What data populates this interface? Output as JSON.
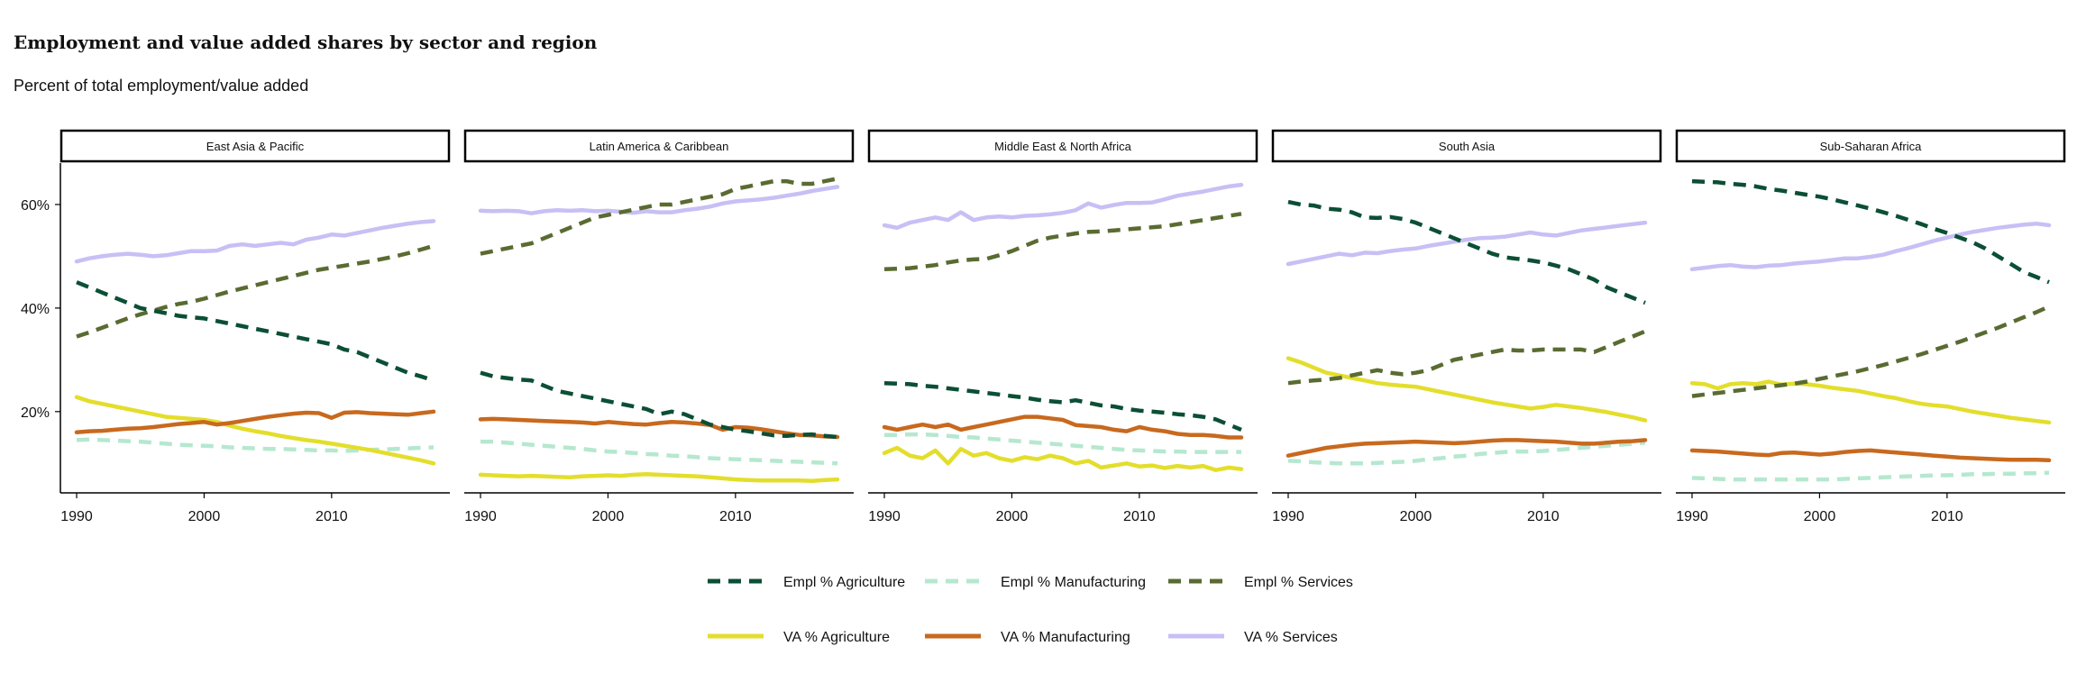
{
  "chart_data": {
    "type": "line",
    "title": "Employment and value added shares by sector and region",
    "subtitle": "Percent of total employment/value added",
    "xlabel": "",
    "ylabel": "",
    "xlim": [
      1990,
      2018
    ],
    "ylim": [
      5,
      68
    ],
    "x_ticks": [
      1990,
      2000,
      2010
    ],
    "y_ticks": [
      20,
      40,
      60
    ],
    "y_tick_labels": [
      "20%",
      "40%",
      "60%"
    ],
    "grid": false,
    "legend_position": "bottom",
    "x": [
      1990,
      1991,
      1992,
      1993,
      1994,
      1995,
      1996,
      1997,
      1998,
      1999,
      2000,
      2001,
      2002,
      2003,
      2004,
      2005,
      2006,
      2007,
      2008,
      2009,
      2010,
      2011,
      2012,
      2013,
      2014,
      2015,
      2016,
      2017,
      2018
    ],
    "legend": [
      {
        "key": "empl_agr",
        "name": "Empl % Agriculture",
        "color": "#0b4f35",
        "dashed": true
      },
      {
        "key": "empl_man",
        "name": "Empl % Manufacturing",
        "color": "#b5e8cf",
        "dashed": true
      },
      {
        "key": "empl_ser",
        "name": "Empl % Services",
        "color": "#5a6b32",
        "dashed": true
      },
      {
        "key": "va_agr",
        "name": "VA % Agriculture",
        "color": "#e3de2c",
        "dashed": false
      },
      {
        "key": "va_man",
        "name": "VA % Manufacturing",
        "color": "#c8691e",
        "dashed": false
      },
      {
        "key": "va_ser",
        "name": "VA % Services",
        "color": "#c7c0f5",
        "dashed": false
      }
    ],
    "panels": [
      {
        "region": "East Asia & Pacific",
        "series": {
          "empl_agr": [
            45.0,
            44.0,
            43.0,
            42.0,
            41.0,
            40.0,
            39.5,
            39.0,
            38.5,
            38.2,
            38.0,
            37.5,
            37.0,
            36.5,
            36.0,
            35.5,
            35.0,
            34.5,
            34.0,
            33.5,
            33.0,
            32.0,
            31.5,
            30.5,
            29.5,
            28.5,
            27.5,
            26.8,
            26.0
          ],
          "empl_man": [
            14.5,
            14.6,
            14.5,
            14.4,
            14.3,
            14.2,
            14.0,
            13.8,
            13.6,
            13.5,
            13.4,
            13.3,
            13.1,
            13.0,
            12.9,
            12.8,
            12.8,
            12.7,
            12.6,
            12.5,
            12.5,
            12.4,
            12.5,
            12.6,
            12.7,
            12.8,
            12.9,
            13.0,
            13.1
          ],
          "empl_ser": [
            34.5,
            35.3,
            36.2,
            37.1,
            38.0,
            38.8,
            39.5,
            40.2,
            40.8,
            41.2,
            41.8,
            42.5,
            43.2,
            43.8,
            44.4,
            45.0,
            45.6,
            46.2,
            46.8,
            47.4,
            47.8,
            48.2,
            48.6,
            49.0,
            49.5,
            50.0,
            50.6,
            51.3,
            52.0
          ],
          "va_agr": [
            22.8,
            22.0,
            21.5,
            21.0,
            20.5,
            20.0,
            19.5,
            19.0,
            18.8,
            18.6,
            18.4,
            18.0,
            17.3,
            16.7,
            16.2,
            15.8,
            15.3,
            14.9,
            14.5,
            14.2,
            13.8,
            13.4,
            13.0,
            12.6,
            12.1,
            11.6,
            11.1,
            10.6,
            10.0
          ],
          "va_man": [
            16.0,
            16.2,
            16.3,
            16.5,
            16.7,
            16.8,
            17.0,
            17.3,
            17.6,
            17.8,
            18.0,
            17.5,
            17.8,
            18.2,
            18.6,
            19.0,
            19.3,
            19.6,
            19.8,
            19.7,
            18.8,
            19.8,
            19.9,
            19.7,
            19.6,
            19.5,
            19.4,
            19.7,
            20.0
          ],
          "va_ser": [
            49.0,
            49.6,
            50.0,
            50.3,
            50.5,
            50.3,
            50.0,
            50.2,
            50.6,
            51.0,
            51.0,
            51.1,
            52.0,
            52.3,
            52.0,
            52.3,
            52.6,
            52.3,
            53.2,
            53.6,
            54.2,
            54.0,
            54.5,
            55.0,
            55.5,
            55.9,
            56.3,
            56.6,
            56.8
          ]
        }
      },
      {
        "region": "Latin America & Caribbean",
        "series": {
          "empl_agr": [
            27.5,
            26.8,
            26.5,
            26.2,
            26.0,
            25.0,
            24.0,
            23.5,
            23.0,
            22.5,
            22.0,
            21.5,
            21.0,
            20.5,
            19.5,
            20.0,
            19.5,
            18.5,
            17.5,
            17.0,
            16.5,
            16.2,
            15.8,
            15.4,
            15.3,
            15.5,
            15.6,
            15.3,
            15.1
          ],
          "empl_man": [
            14.2,
            14.2,
            14.0,
            13.8,
            13.6,
            13.4,
            13.2,
            13.0,
            12.8,
            12.5,
            12.3,
            12.2,
            12.0,
            11.8,
            11.7,
            11.5,
            11.4,
            11.2,
            11.0,
            10.9,
            10.8,
            10.7,
            10.6,
            10.5,
            10.4,
            10.3,
            10.2,
            10.1,
            10.0
          ],
          "empl_ser": [
            50.5,
            51.0,
            51.5,
            52.0,
            52.5,
            53.5,
            54.5,
            55.5,
            56.5,
            57.5,
            58.0,
            58.5,
            59.0,
            59.5,
            60.0,
            60.0,
            60.5,
            61.0,
            61.5,
            62.0,
            63.0,
            63.5,
            64.0,
            64.5,
            64.5,
            64.0,
            64.0,
            64.5,
            65.0
          ],
          "va_agr": [
            7.8,
            7.7,
            7.6,
            7.5,
            7.6,
            7.5,
            7.4,
            7.3,
            7.5,
            7.6,
            7.7,
            7.6,
            7.8,
            7.9,
            7.8,
            7.7,
            7.6,
            7.5,
            7.3,
            7.1,
            6.9,
            6.8,
            6.7,
            6.7,
            6.7,
            6.7,
            6.6,
            6.8,
            6.9
          ],
          "va_man": [
            18.5,
            18.6,
            18.5,
            18.4,
            18.3,
            18.2,
            18.1,
            18.0,
            17.9,
            17.7,
            18.0,
            17.8,
            17.6,
            17.5,
            17.8,
            18.0,
            17.9,
            17.7,
            17.4,
            16.5,
            17.0,
            16.9,
            16.6,
            16.2,
            15.8,
            15.5,
            15.4,
            15.2,
            15.1
          ],
          "va_ser": [
            58.8,
            58.7,
            58.8,
            58.7,
            58.3,
            58.7,
            58.9,
            58.8,
            58.9,
            58.7,
            58.8,
            58.6,
            58.4,
            58.7,
            58.5,
            58.5,
            58.9,
            59.2,
            59.6,
            60.2,
            60.6,
            60.8,
            61.0,
            61.3,
            61.7,
            62.1,
            62.6,
            63.0,
            63.4
          ]
        }
      },
      {
        "region": "Middle East & North Africa",
        "series": {
          "empl_agr": [
            25.5,
            25.4,
            25.3,
            25.0,
            24.8,
            24.5,
            24.2,
            23.9,
            23.6,
            23.3,
            23.0,
            22.7,
            22.3,
            22.0,
            21.8,
            22.2,
            21.7,
            21.2,
            21.0,
            20.5,
            20.2,
            20.0,
            19.8,
            19.5,
            19.3,
            19.0,
            18.5,
            17.5,
            16.5
          ],
          "empl_man": [
            15.5,
            15.5,
            15.6,
            15.6,
            15.5,
            15.3,
            15.1,
            15.0,
            14.8,
            14.6,
            14.4,
            14.2,
            14.0,
            13.8,
            13.6,
            13.4,
            13.2,
            13.0,
            12.8,
            12.6,
            12.5,
            12.4,
            12.3,
            12.3,
            12.2,
            12.2,
            12.2,
            12.2,
            12.2
          ],
          "empl_ser": [
            47.5,
            47.6,
            47.7,
            48.0,
            48.3,
            48.8,
            49.2,
            49.4,
            49.5,
            50.2,
            51.0,
            52.0,
            53.0,
            53.6,
            54.0,
            54.4,
            54.7,
            54.8,
            55.0,
            55.2,
            55.4,
            55.6,
            55.8,
            56.2,
            56.6,
            57.0,
            57.4,
            57.8,
            58.2
          ],
          "va_agr": [
            12.0,
            13.0,
            11.5,
            11.0,
            12.5,
            10.0,
            12.8,
            11.5,
            12.0,
            11.0,
            10.5,
            11.2,
            10.8,
            11.5,
            11.0,
            10.0,
            10.5,
            9.2,
            9.6,
            10.0,
            9.4,
            9.6,
            9.1,
            9.5,
            9.2,
            9.5,
            8.7,
            9.2,
            8.9
          ],
          "va_man": [
            17.0,
            16.5,
            17.0,
            17.5,
            17.0,
            17.5,
            16.5,
            17.0,
            17.5,
            18.0,
            18.5,
            19.0,
            19.0,
            18.7,
            18.4,
            17.4,
            17.2,
            17.0,
            16.5,
            16.2,
            17.0,
            16.5,
            16.2,
            15.7,
            15.5,
            15.5,
            15.3,
            15.0,
            15.0
          ],
          "va_ser": [
            56.0,
            55.5,
            56.5,
            57.0,
            57.5,
            57.0,
            58.5,
            57.0,
            57.5,
            57.7,
            57.5,
            57.8,
            57.9,
            58.1,
            58.4,
            58.9,
            60.2,
            59.4,
            59.9,
            60.3,
            60.3,
            60.4,
            61.0,
            61.7,
            62.1,
            62.5,
            63.0,
            63.5,
            63.8
          ]
        }
      },
      {
        "region": "South Asia",
        "series": {
          "empl_agr": [
            60.5,
            60.0,
            59.8,
            59.2,
            59.0,
            58.5,
            57.5,
            57.4,
            57.6,
            57.2,
            56.5,
            55.5,
            54.5,
            53.5,
            52.5,
            51.5,
            50.5,
            49.8,
            49.5,
            49.2,
            48.8,
            48.2,
            47.5,
            46.5,
            45.5,
            44.0,
            43.0,
            42.0,
            41.0
          ],
          "empl_man": [
            10.5,
            10.4,
            10.2,
            10.1,
            10.0,
            10.0,
            10.0,
            10.1,
            10.2,
            10.3,
            10.5,
            10.8,
            11.0,
            11.3,
            11.5,
            11.8,
            12.0,
            12.2,
            12.3,
            12.3,
            12.4,
            12.6,
            12.8,
            13.0,
            13.2,
            13.4,
            13.6,
            13.8,
            14.0
          ],
          "empl_ser": [
            25.5,
            25.8,
            26.0,
            26.2,
            26.5,
            27.0,
            27.5,
            28.0,
            27.5,
            27.2,
            27.5,
            28.0,
            29.0,
            30.0,
            30.5,
            31.0,
            31.5,
            32.0,
            31.8,
            31.8,
            32.0,
            32.0,
            32.0,
            32.0,
            31.5,
            32.5,
            33.5,
            34.5,
            35.5
          ],
          "va_agr": [
            30.3,
            29.5,
            28.5,
            27.5,
            27.0,
            26.5,
            26.0,
            25.5,
            25.2,
            25.0,
            24.8,
            24.3,
            23.8,
            23.3,
            22.8,
            22.3,
            21.8,
            21.4,
            21.0,
            20.6,
            20.9,
            21.3,
            21.0,
            20.7,
            20.3,
            19.9,
            19.4,
            18.9,
            18.3
          ],
          "va_man": [
            11.5,
            12.0,
            12.5,
            13.0,
            13.3,
            13.6,
            13.8,
            13.9,
            14.0,
            14.1,
            14.2,
            14.1,
            14.0,
            13.9,
            14.0,
            14.2,
            14.4,
            14.5,
            14.5,
            14.4,
            14.3,
            14.2,
            14.0,
            13.8,
            13.8,
            14.0,
            14.2,
            14.3,
            14.5
          ],
          "va_ser": [
            48.5,
            49.0,
            49.5,
            50.0,
            50.5,
            50.2,
            50.7,
            50.6,
            51.0,
            51.3,
            51.5,
            52.0,
            52.4,
            52.8,
            53.2,
            53.5,
            53.6,
            53.8,
            54.2,
            54.6,
            54.2,
            54.0,
            54.5,
            55.0,
            55.3,
            55.6,
            55.9,
            56.2,
            56.5
          ]
        }
      },
      {
        "region": "Sub-Saharan Africa",
        "series": {
          "empl_agr": [
            64.5,
            64.4,
            64.3,
            64.0,
            63.8,
            63.5,
            63.0,
            62.7,
            62.3,
            61.9,
            61.5,
            61.0,
            60.4,
            59.8,
            59.2,
            58.5,
            57.8,
            57.0,
            56.2,
            55.3,
            54.5,
            53.6,
            52.7,
            51.5,
            50.0,
            48.5,
            47.0,
            46.0,
            45.0
          ],
          "empl_man": [
            7.2,
            7.1,
            7.0,
            6.9,
            6.9,
            6.9,
            6.9,
            6.9,
            6.9,
            6.9,
            6.9,
            6.9,
            7.0,
            7.1,
            7.2,
            7.3,
            7.4,
            7.5,
            7.6,
            7.7,
            7.7,
            7.8,
            7.9,
            7.9,
            8.0,
            8.0,
            8.1,
            8.1,
            8.2
          ],
          "empl_ser": [
            23.0,
            23.3,
            23.6,
            23.9,
            24.2,
            24.5,
            24.8,
            25.1,
            25.4,
            25.8,
            26.3,
            26.8,
            27.3,
            27.8,
            28.4,
            29.0,
            29.7,
            30.4,
            31.1,
            31.9,
            32.7,
            33.5,
            34.4,
            35.3,
            36.2,
            37.2,
            38.2,
            39.2,
            40.3
          ],
          "va_agr": [
            25.5,
            25.3,
            24.5,
            25.3,
            25.5,
            25.3,
            25.8,
            25.2,
            25.4,
            25.3,
            25.0,
            24.6,
            24.3,
            24.0,
            23.5,
            23.0,
            22.6,
            22.0,
            21.5,
            21.2,
            21.0,
            20.5,
            20.0,
            19.6,
            19.2,
            18.8,
            18.5,
            18.2,
            17.9
          ],
          "va_man": [
            12.5,
            12.4,
            12.3,
            12.1,
            11.9,
            11.7,
            11.6,
            12.0,
            12.1,
            11.9,
            11.7,
            11.9,
            12.2,
            12.4,
            12.5,
            12.3,
            12.1,
            11.9,
            11.7,
            11.5,
            11.3,
            11.1,
            11.0,
            10.9,
            10.8,
            10.7,
            10.7,
            10.7,
            10.6
          ],
          "va_ser": [
            47.5,
            47.8,
            48.1,
            48.3,
            48.0,
            47.9,
            48.2,
            48.3,
            48.6,
            48.8,
            49.0,
            49.3,
            49.6,
            49.6,
            49.9,
            50.3,
            51.0,
            51.6,
            52.3,
            53.0,
            53.6,
            54.2,
            54.7,
            55.1,
            55.5,
            55.8,
            56.1,
            56.3,
            56.0
          ]
        }
      }
    ]
  }
}
